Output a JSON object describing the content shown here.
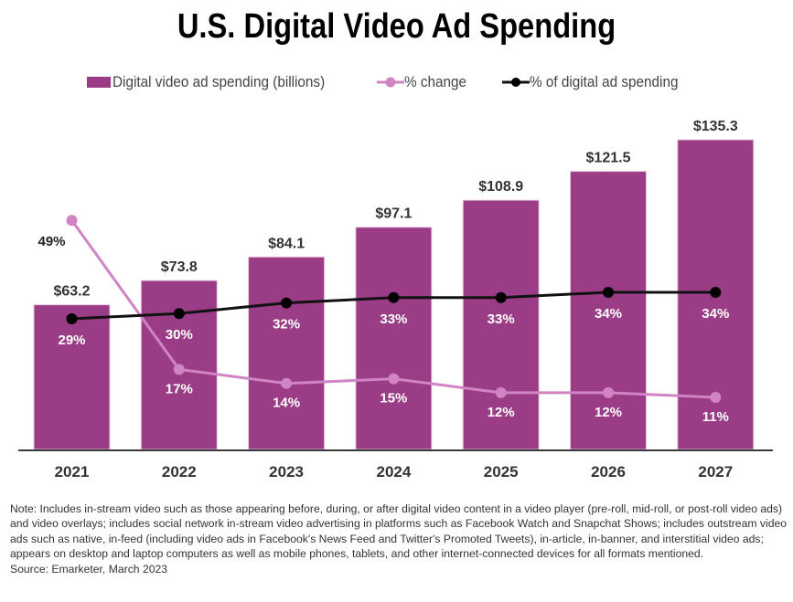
{
  "title": "U.S. Digital Video Ad Spending",
  "legend": [
    {
      "label": "Digital video ad spending (billions)",
      "type": "bar",
      "color": "#9B3D86"
    },
    {
      "label": "% change",
      "type": "line",
      "color": "#D084C4"
    },
    {
      "label": "% of digital ad spending",
      "type": "line",
      "color": "#111111"
    }
  ],
  "chart_data": {
    "type": "bar",
    "title": "U.S. Digital Video Ad Spending",
    "xlabel": "",
    "ylabel": "",
    "categories": [
      "2021",
      "2022",
      "2023",
      "2024",
      "2025",
      "2026",
      "2027"
    ],
    "series": [
      {
        "name": "Digital video ad spending (billions)",
        "type": "bar",
        "color": "#9B3D86",
        "values": [
          63.2,
          73.8,
          84.1,
          97.1,
          108.9,
          121.5,
          135.3
        ],
        "labels": [
          "$63.2",
          "$73.8",
          "$84.1",
          "$97.1",
          "$108.9",
          "$121.5",
          "$135.3"
        ]
      },
      {
        "name": "% change",
        "type": "line",
        "color": "#D084C4",
        "values": [
          49,
          17,
          14,
          15,
          12,
          12,
          11
        ],
        "labels": [
          "49%",
          "17%",
          "14%",
          "15%",
          "12%",
          "12%",
          "11%"
        ]
      },
      {
        "name": "% of digital ad spending",
        "type": "line",
        "color": "#111111",
        "values": [
          29,
          30,
          32,
          33,
          33,
          34,
          34
        ],
        "labels": [
          "29%",
          "30%",
          "32%",
          "33%",
          "33%",
          "34%",
          "34%"
        ]
      }
    ],
    "ylim": [
      0,
      135.3
    ],
    "grid": false,
    "legend_position": "top"
  },
  "note": "Note: Includes in-stream video such as those appearing before, during, or after digital video content in a video player (pre-roll, mid-roll, or post-roll video ads) and video overlays; includes social network in-stream video advertising in platforms such as Facebook Watch and Snapchat Shows; includes outstream video ads such as native, in-feed (including video ads in Facebook's News Feed and Twitter's Promoted Tweets), in-article, in-banner, and interstitial video ads; appears on desktop and laptop computers as well as mobile phones, tablets, and other internet-connected devices for all formats mentioned.",
  "source": "Source: Emarketer, March 2023"
}
